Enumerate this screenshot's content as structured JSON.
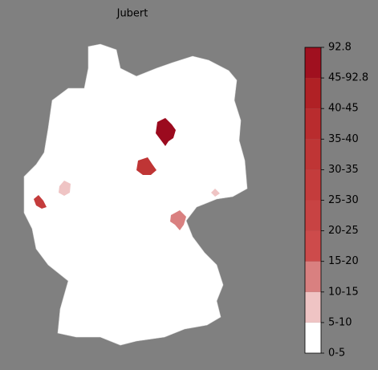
{
  "map": {
    "title": "Jubert",
    "legend": {
      "labels": [
        "0-5",
        "5-10",
        "10-15",
        "15-20",
        "20-25",
        "25-30",
        "30-35",
        "35-40",
        "40-45",
        "45-92.8",
        "92.8"
      ],
      "colors": [
        "#ffffff",
        "#efc4c4",
        "#d98080",
        "#cd4b4b",
        "#c84343",
        "#c43c3c",
        "#bf3535",
        "#b92c2e",
        "#b02125",
        "#a0101f"
      ]
    }
  }
}
